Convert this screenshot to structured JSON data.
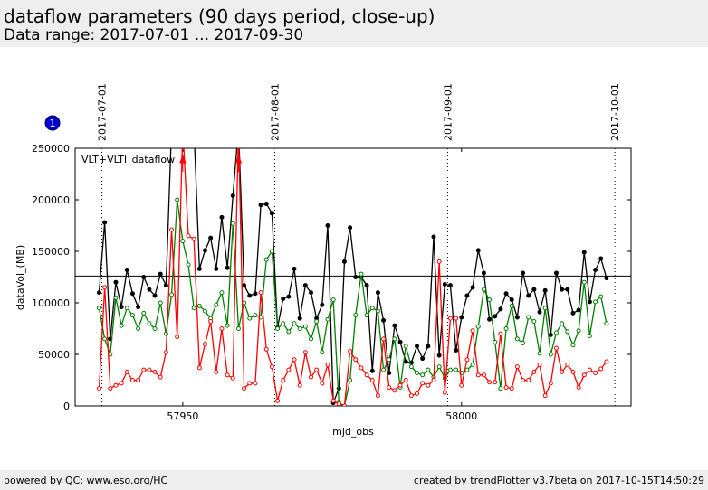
{
  "header": {
    "title": "dataflow parameters (90 days period, close-up)",
    "subtitle": "Data range: 2017-07-01 ... 2017-09-30"
  },
  "footer": {
    "left": "powered by QC: www.eso.org/HC",
    "right": "created by trendPlotter v3.7beta on 2017-10-15T14:50:29"
  },
  "badge": "1",
  "chart_data": {
    "type": "line",
    "annotation": "VLT+VLTI_dataflow",
    "xlabel": "mjd_obs",
    "ylabel": "dataVol_(MB)",
    "xlim": [
      57930.7,
      58030.4
    ],
    "ylim": [
      0,
      250000
    ],
    "xticks": [
      57950,
      58000
    ],
    "yticks": [
      0,
      50000,
      100000,
      150000,
      200000,
      250000
    ],
    "date_lines": [
      {
        "value": 57935.5,
        "label": "2017-07-01"
      },
      {
        "value": 57966.5,
        "label": "2017-08-01"
      },
      {
        "value": 57997.5,
        "label": "2017-09-01"
      },
      {
        "value": 58027.5,
        "label": "2017-10-01"
      }
    ],
    "hline": 126000,
    "x": [
      57935,
      57936,
      57937,
      57938,
      57939,
      57940,
      57941,
      57942,
      57943,
      57944,
      57945,
      57946,
      57947,
      57948,
      57949,
      57950,
      57951,
      57952,
      57953,
      57954,
      57955,
      57956,
      57957,
      57958,
      57959,
      57960,
      57961,
      57962,
      57963,
      57964,
      57965,
      57966,
      57967,
      57968,
      57969,
      57970,
      57971,
      57972,
      57973,
      57974,
      57975,
      57976,
      57977,
      57978,
      57979,
      57980,
      57981,
      57982,
      57983,
      57984,
      57985,
      57986,
      57987,
      57988,
      57989,
      57990,
      57991,
      57992,
      57993,
      57994,
      57995,
      57996,
      57997,
      57998,
      57999,
      58000,
      58001,
      58002,
      58003,
      58004,
      58005,
      58006,
      58007,
      58008,
      58009,
      58010,
      58011,
      58012,
      58013,
      58014,
      58015,
      58016,
      58017,
      58018,
      58019,
      58020,
      58021,
      58022,
      58023,
      58024,
      58025,
      58026
    ],
    "series": [
      {
        "color": "#000000",
        "values": [
          110000,
          178000,
          65000,
          120000,
          96000,
          132000,
          109000,
          96000,
          125000,
          113000,
          107000,
          128000,
          117000,
          270000,
          270000,
          270000,
          270000,
          270000,
          133000,
          151000,
          163000,
          133000,
          183000,
          134000,
          204000,
          270000,
          117000,
          107000,
          109000,
          195000,
          196000,
          187000,
          76000,
          104000,
          106000,
          133000,
          85000,
          117000,
          110000,
          85000,
          98000,
          175000,
          3000,
          17000,
          140000,
          173000,
          125000,
          125000,
          117000,
          34000,
          110000,
          83000,
          32000,
          78000,
          62000,
          43000,
          42000,
          58000,
          46000,
          58000,
          164000,
          49000,
          118000,
          117000,
          54000,
          86000,
          107000,
          115000,
          151000,
          129000,
          84000,
          87000,
          94000,
          109000,
          103000,
          86000,
          129000,
          107000,
          113000,
          91000,
          112000,
          69000,
          129000,
          113000,
          113000,
          90000,
          93000,
          149000,
          101000,
          132000,
          143000,
          124000
        ]
      },
      {
        "color": "#008000",
        "values": [
          95000,
          65000,
          50000,
          105000,
          78000,
          95000,
          88000,
          75000,
          90000,
          80000,
          75000,
          100000,
          70000,
          108000,
          200000,
          160000,
          137000,
          95000,
          97000,
          92000,
          85000,
          98000,
          110000,
          78000,
          177000,
          75000,
          100000,
          85000,
          88000,
          86000,
          142000,
          150000,
          75000,
          80000,
          72000,
          80000,
          75000,
          77000,
          65000,
          82000,
          52000,
          84000,
          103000,
          3000,
          0,
          25000,
          88000,
          128000,
          88000,
          95000,
          92000,
          35000,
          45000,
          65000,
          18000,
          58000,
          38000,
          32000,
          30000,
          35000,
          28000,
          38000,
          27000,
          35000,
          35000,
          32000,
          35000,
          40000,
          77000,
          113000,
          103000,
          62000,
          17000,
          75000,
          97000,
          65000,
          61000,
          86000,
          82000,
          51000,
          95000,
          50000,
          71000,
          80000,
          72000,
          59000,
          73000,
          120000,
          68000,
          101000,
          106000,
          80000
        ]
      },
      {
        "color": "#ff0000",
        "values": [
          17000,
          115000,
          17000,
          20000,
          22000,
          33000,
          25000,
          25000,
          35000,
          35000,
          33000,
          28000,
          52000,
          171000,
          67000,
          270000,
          165000,
          162000,
          37000,
          60000,
          82000,
          33000,
          75000,
          30000,
          27000,
          270000,
          17000,
          22000,
          22000,
          110000,
          55000,
          38000,
          5000,
          25000,
          35000,
          45000,
          20000,
          52000,
          28000,
          35000,
          22000,
          40000,
          5000,
          2000,
          0,
          53000,
          45000,
          37000,
          30000,
          25000,
          10000,
          65000,
          18000,
          15000,
          20000,
          25000,
          10000,
          12000,
          22000,
          20000,
          25000,
          140000,
          13000,
          85000,
          85000,
          20000,
          45000,
          73000,
          30000,
          30000,
          23000,
          23000,
          70000,
          18000,
          17000,
          38000,
          25000,
          25000,
          33000,
          40000,
          10000,
          22000,
          56000,
          33000,
          40000,
          33000,
          18000,
          30000,
          35000,
          32000,
          36000,
          43000
        ]
      }
    ]
  }
}
